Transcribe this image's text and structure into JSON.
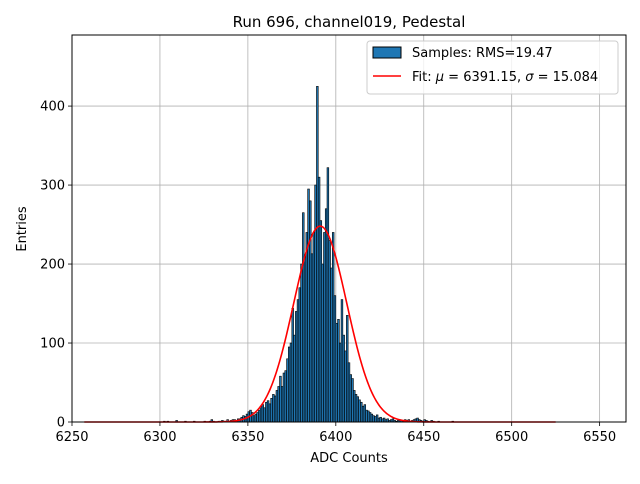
{
  "chart_data": {
    "type": "bar",
    "title": "Run 696, channel019, Pedestal",
    "xlabel": "ADC Counts",
    "ylabel": "Entries",
    "xlim": [
      6250,
      6565
    ],
    "ylim": [
      0,
      490
    ],
    "xticks": [
      6250,
      6300,
      6350,
      6400,
      6450,
      6500,
      6550
    ],
    "yticks": [
      0,
      100,
      200,
      300,
      400
    ],
    "grid": true,
    "legend_position": "top-right",
    "legend": {
      "samples_label": "Samples: RMS=19.47",
      "fit_label_prefix": "Fit: ",
      "mu_symbol": "μ",
      "mu_value": " = 6391.15, ",
      "sigma_symbol": "σ",
      "sigma_value": " = 15.084"
    },
    "colors": {
      "bars": "#1f77b4",
      "bar_edge": "#000000",
      "fit": "#ff0000",
      "grid": "#b0b0b0"
    },
    "histogram": {
      "bin_start": 6258,
      "bin_width": 1,
      "counts": [
        0,
        0,
        0,
        0,
        0,
        0,
        0,
        0,
        0,
        0,
        0,
        0,
        0,
        0,
        0,
        0,
        0,
        0,
        0,
        0,
        0,
        0,
        0,
        0,
        0,
        0,
        0,
        0,
        0,
        0,
        0,
        0,
        0,
        0,
        0,
        0,
        0,
        0,
        0,
        0,
        0,
        0,
        0,
        0,
        1,
        0,
        1,
        0,
        0,
        0,
        0,
        2,
        0,
        0,
        0,
        0,
        1,
        0,
        0,
        0,
        0,
        1,
        0,
        0,
        0,
        0,
        0,
        1,
        0,
        0,
        1,
        3,
        1,
        0,
        0,
        1,
        1,
        2,
        1,
        1,
        3,
        1,
        2,
        3,
        3,
        2,
        4,
        4,
        6,
        8,
        7,
        10,
        13,
        15,
        12,
        8,
        10,
        12,
        15,
        20,
        22,
        18,
        25,
        27,
        23,
        30,
        35,
        33,
        40,
        45,
        58,
        45,
        62,
        65,
        80,
        95,
        100,
        144,
        110,
        140,
        155,
        170,
        200,
        265,
        210,
        240,
        295,
        280,
        213,
        240,
        300,
        425,
        310,
        255,
        200,
        240,
        270,
        322,
        230,
        195,
        240,
        160,
        125,
        130,
        100,
        155,
        110,
        90,
        135,
        75,
        60,
        55,
        40,
        35,
        32,
        28,
        25,
        20,
        22,
        15,
        14,
        12,
        10,
        8,
        7,
        9,
        5,
        6,
        4,
        5,
        3,
        4,
        2,
        3,
        4,
        2,
        1,
        2,
        3,
        2,
        1,
        3,
        2,
        3,
        1,
        2,
        3,
        4,
        5,
        3,
        2,
        1,
        3,
        2,
        1,
        0,
        2,
        1,
        0,
        0,
        1,
        0,
        0,
        0,
        0,
        0,
        0,
        0,
        1,
        0,
        0,
        0,
        0,
        0,
        0,
        0,
        0,
        0,
        0,
        0,
        0,
        0,
        0,
        0,
        0,
        0,
        0,
        0,
        0,
        0,
        0,
        0,
        0,
        0,
        0,
        0,
        0,
        0,
        0,
        0,
        0,
        0,
        0,
        0,
        0,
        0,
        0,
        0,
        0,
        0,
        0,
        0,
        0,
        0,
        0,
        0,
        0,
        0,
        0,
        0,
        0,
        0,
        0,
        0,
        0,
        0,
        0,
        0
      ]
    },
    "fit": {
      "amplitude": 248,
      "mu": 6391.15,
      "sigma": 15.084,
      "x_range": [
        6257,
        6525
      ]
    }
  }
}
